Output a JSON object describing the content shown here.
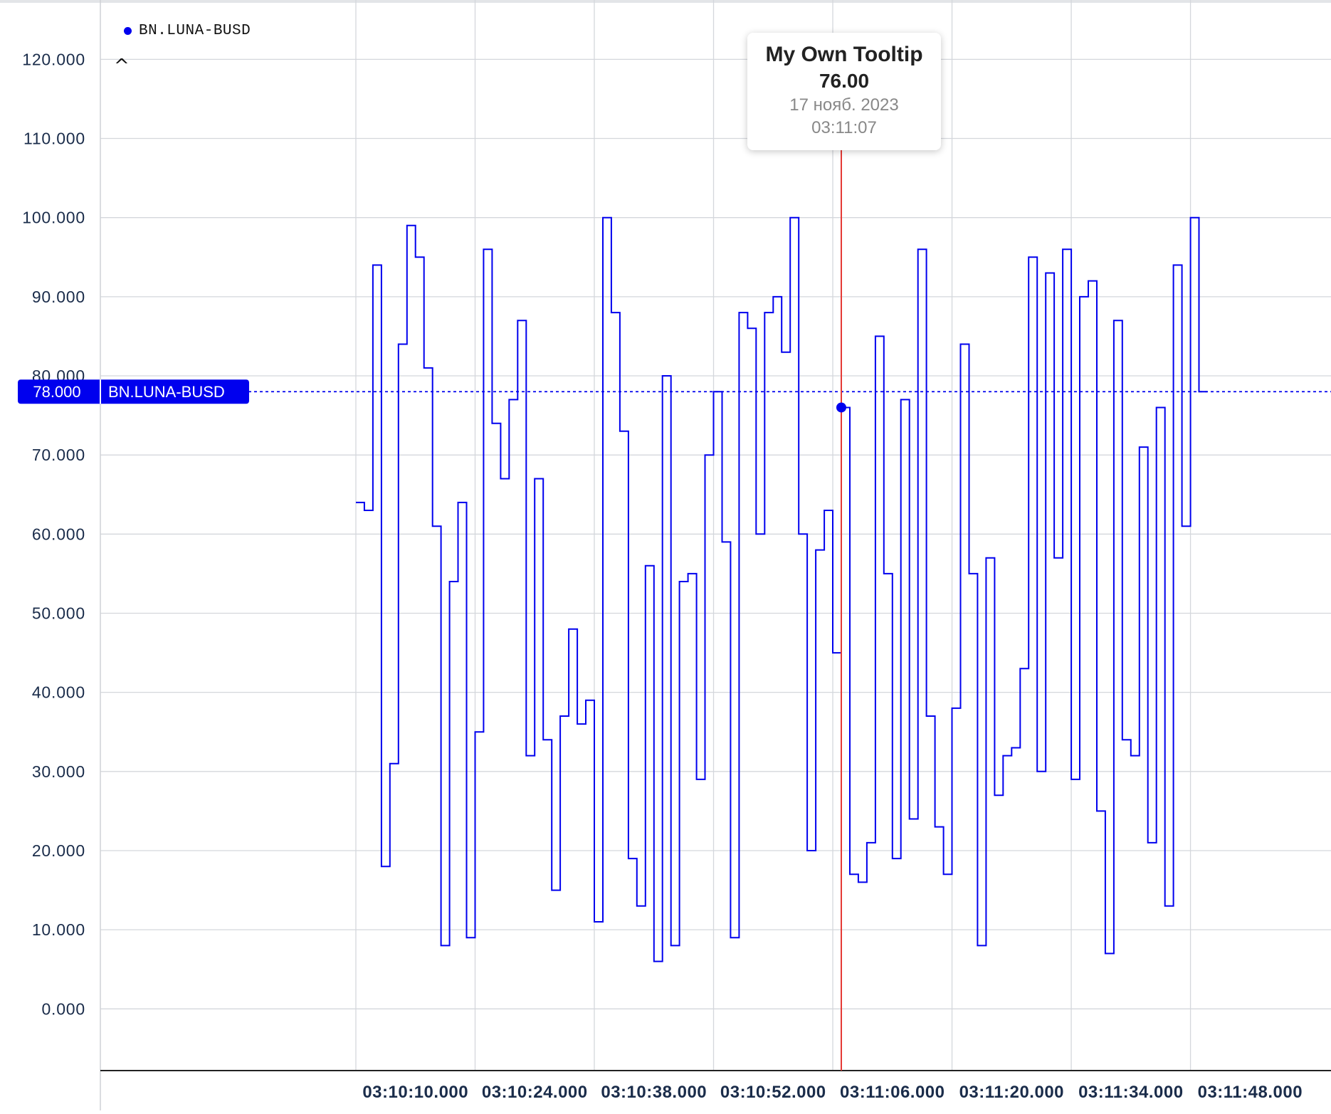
{
  "legend": {
    "series_name": "BN.LUNA-BUSD",
    "toggle_glyph": "^"
  },
  "price_label": {
    "value": "78.000",
    "name": "BN.LUNA-BUSD"
  },
  "tooltip": {
    "title": "My Own Tooltip",
    "value": "76.00",
    "date": "17 нояб. 2023",
    "time": "03:11:07"
  },
  "colors": {
    "series": "#0000ee",
    "crosshair": "#e53935",
    "grid": "#d4d7dc",
    "axis_text": "#1a2c4a"
  },
  "chart_data": {
    "type": "line",
    "step": true,
    "series": [
      {
        "name": "BN.LUNA-BUSD",
        "x_seconds": [
          0,
          1,
          2,
          3,
          4,
          5,
          6,
          7,
          8,
          9,
          10,
          11,
          12,
          13,
          14,
          15,
          16,
          17,
          18,
          19,
          20,
          21,
          22,
          23,
          24,
          25,
          26,
          27,
          28,
          29,
          30,
          31,
          32,
          33,
          34,
          35,
          36,
          37,
          38,
          39,
          40,
          41,
          42,
          43,
          44,
          45,
          46,
          47,
          48,
          49,
          50,
          51,
          52,
          53,
          54,
          55,
          56,
          57,
          58,
          59,
          60,
          61,
          62,
          63,
          64,
          65,
          66,
          67,
          68,
          69,
          70,
          71,
          72,
          73,
          74,
          75,
          76,
          77,
          78,
          79,
          80,
          81,
          82,
          83,
          84,
          85,
          86,
          87,
          88,
          89,
          90,
          91,
          92,
          93,
          94,
          95,
          96,
          97,
          98,
          99
        ],
        "values": [
          64,
          63,
          94,
          18,
          31,
          84,
          99,
          95,
          81,
          61,
          8,
          54,
          64,
          9,
          35,
          96,
          74,
          67,
          77,
          87,
          32,
          67,
          34,
          15,
          37,
          48,
          36,
          39,
          11,
          100,
          88,
          73,
          19,
          13,
          56,
          6,
          80,
          8,
          54,
          55,
          29,
          70,
          78,
          59,
          9,
          88,
          86,
          60,
          88,
          90,
          83,
          100,
          60,
          20,
          58,
          63,
          45,
          76,
          17,
          16,
          21,
          85,
          55,
          19,
          77,
          24,
          96,
          37,
          23,
          17,
          38,
          84,
          55,
          8,
          57,
          27,
          32,
          33,
          43,
          95,
          30,
          93,
          57,
          96,
          29,
          90,
          92,
          25,
          7,
          87,
          34,
          32,
          71,
          21,
          76,
          13,
          94,
          61,
          100,
          78
        ]
      }
    ],
    "x_tick_labels": [
      "03:10:10.000",
      "03:10:24.000",
      "03:10:38.000",
      "03:10:52.000",
      "03:11:06.000",
      "03:11:20.000",
      "03:11:34.000",
      "03:11:48.000"
    ],
    "y_ticks": [
      0,
      10,
      20,
      30,
      40,
      50,
      60,
      70,
      80,
      90,
      100,
      110,
      120
    ],
    "y_tick_labels": [
      "0.000",
      "10.000",
      "20.000",
      "30.000",
      "40.000",
      "50.000",
      "60.000",
      "70.000",
      "80.000",
      "90.000",
      "100.000",
      "110.000",
      "120.000"
    ],
    "ylim": [
      -7.8,
      127.5
    ],
    "xlim": [
      -30,
      114.5
    ],
    "last_value": 78,
    "crosshair": {
      "x_seconds": 57,
      "value": 76
    },
    "grid": true,
    "legend_position": "top-left"
  }
}
